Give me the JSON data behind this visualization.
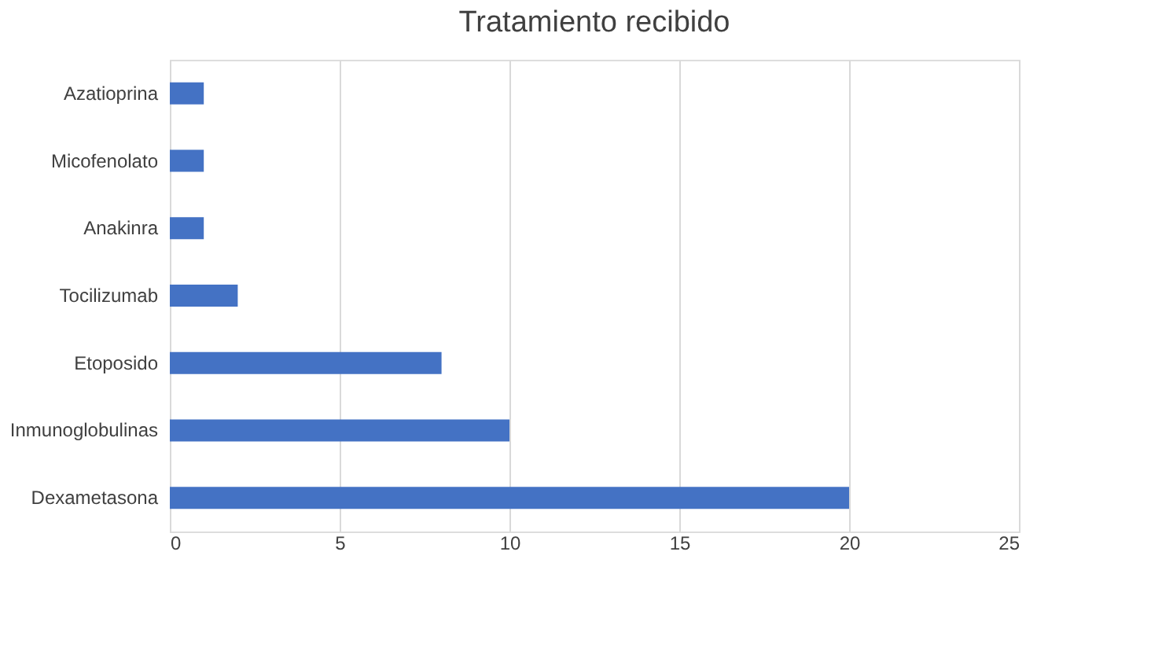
{
  "chart_data": {
    "type": "bar",
    "orientation": "horizontal",
    "title": "Tratamiento recibido",
    "categories": [
      "Azatioprina",
      "Micofenolato",
      "Anakinra",
      "Tocilizumab",
      "Etoposido",
      "Inmunoglobulinas",
      "Dexametasona"
    ],
    "values": [
      1,
      1,
      1,
      2,
      8,
      10,
      20
    ],
    "color": "#4472c4",
    "xlim": [
      0,
      25
    ],
    "xticks": [
      0,
      5,
      10,
      15,
      20,
      25
    ],
    "grid": "x"
  }
}
